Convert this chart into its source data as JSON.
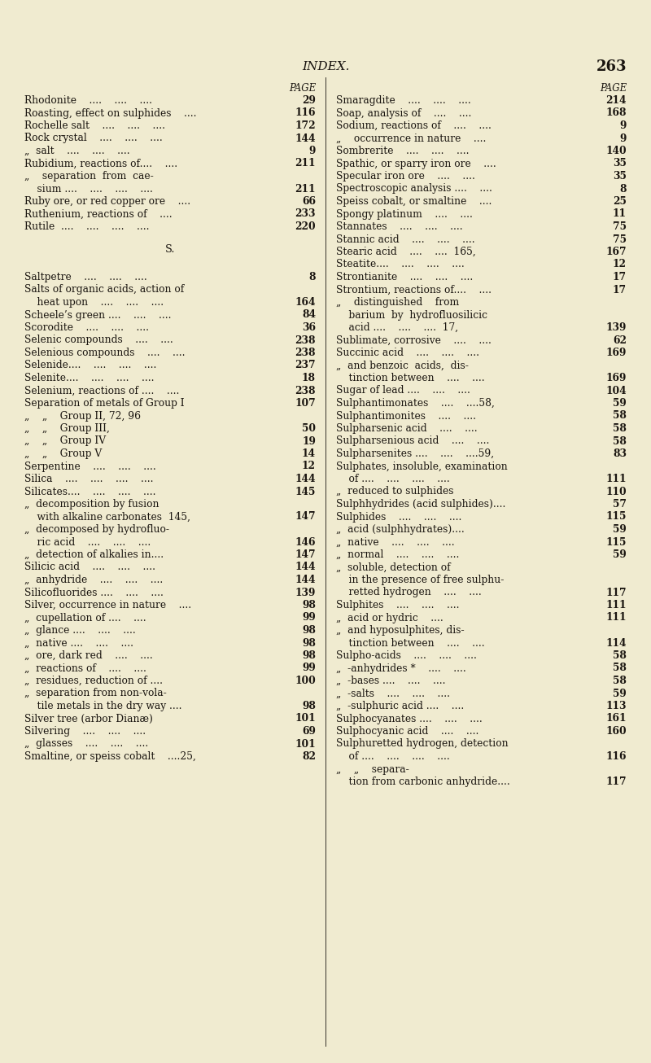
{
  "background_color": "#f0ebd0",
  "text_color": "#1a1510",
  "page_title": "INDEX.",
  "page_number": "263",
  "left_column": [
    {
      "text": "PAGE",
      "page": "",
      "kind": "header"
    },
    {
      "text": "Rhodonite    ....    ....    ....",
      "page": "29",
      "kind": "entry"
    },
    {
      "text": "Roasting, effect on sulphides    ....",
      "page": "116",
      "kind": "entry"
    },
    {
      "text": "Rochelle salt    ....    ....    ....",
      "page": "172",
      "kind": "entry"
    },
    {
      "text": "Rock crystal    ....    ....    ....",
      "page": "144",
      "kind": "entry"
    },
    {
      "text": "„  salt    ....    ....    ....",
      "page": "9",
      "kind": "entry"
    },
    {
      "text": "Rubidium, reactions of....    ....",
      "page": "211",
      "kind": "entry"
    },
    {
      "text": "„    separation  from  cae-",
      "page": "",
      "kind": "entry"
    },
    {
      "text": "    sium ....    ....    ....    ....",
      "page": "211",
      "kind": "entry"
    },
    {
      "text": "Ruby ore, or red copper ore    ....",
      "page": "66",
      "kind": "entry"
    },
    {
      "text": "Ruthenium, reactions of    ....",
      "page": "233",
      "kind": "entry"
    },
    {
      "text": "Rutile  ....    ....    ....    ....",
      "page": "220",
      "kind": "entry"
    },
    {
      "text": "",
      "page": "",
      "kind": "spacer"
    },
    {
      "text": "S.",
      "page": "",
      "kind": "section"
    },
    {
      "text": "",
      "page": "",
      "kind": "spacer"
    },
    {
      "text": "Saltpetre    ....    ....    ....",
      "page": "8",
      "kind": "entry"
    },
    {
      "text": "Salts of organic acids, action of",
      "page": "",
      "kind": "entry"
    },
    {
      "text": "    heat upon    ....    ....    ....",
      "page": "164",
      "kind": "entry"
    },
    {
      "text": "Scheele’s green ....    ....    ....",
      "page": "84",
      "kind": "entry"
    },
    {
      "text": "Scorodite    ....    ....    ....",
      "page": "36",
      "kind": "entry"
    },
    {
      "text": "Selenic compounds    ....    ....",
      "page": "238",
      "kind": "entry"
    },
    {
      "text": "Selenious compounds    ....    ....",
      "page": "238",
      "kind": "entry"
    },
    {
      "text": "Selenide....    ....    ....    ....",
      "page": "237",
      "kind": "entry"
    },
    {
      "text": "Selenite....    ....    ....    ....",
      "page": "18",
      "kind": "entry"
    },
    {
      "text": "Selenium, reactions of ....    ....",
      "page": "238",
      "kind": "entry"
    },
    {
      "text": "Separation of metals of Group I",
      "page": "107",
      "kind": "entry"
    },
    {
      "text": "„    „    Group II, 72, 96",
      "page": "",
      "kind": "entry"
    },
    {
      "text": "„    „    Group III,",
      "page": "50",
      "kind": "entry"
    },
    {
      "text": "„    „    Group IV",
      "page": "19",
      "kind": "entry"
    },
    {
      "text": "„    „    Group V",
      "page": "14",
      "kind": "entry"
    },
    {
      "text": "Serpentine    ....    ....    ....",
      "page": "12",
      "kind": "entry"
    },
    {
      "text": "Silica    ....    ....    ....    ....",
      "page": "144",
      "kind": "entry"
    },
    {
      "text": "Silicates....    ....    ....    ....",
      "page": "145",
      "kind": "entry"
    },
    {
      "text": "„  decomposition by fusion",
      "page": "",
      "kind": "entry"
    },
    {
      "text": "    with alkaline carbonates  145,",
      "page": "147",
      "kind": "entry"
    },
    {
      "text": "„  decomposed by hydrofluo-",
      "page": "",
      "kind": "entry"
    },
    {
      "text": "    ric acid    ....    ....    ....",
      "page": "146",
      "kind": "entry"
    },
    {
      "text": "„  detection of alkalies in....",
      "page": "147",
      "kind": "entry"
    },
    {
      "text": "Silicic acid    ....    ....    ....",
      "page": "144",
      "kind": "entry"
    },
    {
      "text": "„  anhydride    ....    ....    ....",
      "page": "144",
      "kind": "entry"
    },
    {
      "text": "Silicofluorides ....    ....    ....",
      "page": "139",
      "kind": "entry"
    },
    {
      "text": "Silver, occurrence in nature    ....",
      "page": "98",
      "kind": "entry"
    },
    {
      "text": "„  cupellation of ....    ....",
      "page": "99",
      "kind": "entry"
    },
    {
      "text": "„  glance ....    ....    ....",
      "page": "98",
      "kind": "entry"
    },
    {
      "text": "„  native ....    ....    ....",
      "page": "98",
      "kind": "entry"
    },
    {
      "text": "„  ore, dark red    ....    ....",
      "page": "98",
      "kind": "entry"
    },
    {
      "text": "„  reactions of    ....    ....",
      "page": "99",
      "kind": "entry"
    },
    {
      "text": "„  residues, reduction of ....",
      "page": "100",
      "kind": "entry"
    },
    {
      "text": "„  separation from non-vola-",
      "page": "",
      "kind": "entry"
    },
    {
      "text": "    tile metals in the dry way ....",
      "page": "98",
      "kind": "entry"
    },
    {
      "text": "Silver tree (arbor Dianæ)",
      "page": "101",
      "kind": "entry"
    },
    {
      "text": "Silvering    ....    ....    ....",
      "page": "69",
      "kind": "entry"
    },
    {
      "text": "„  glasses    ....    ....    ....",
      "page": "101",
      "kind": "entry"
    },
    {
      "text": "Smaltine, or speiss cobalt    ....25,",
      "page": "82",
      "kind": "entry"
    }
  ],
  "right_column": [
    {
      "text": "PAGE",
      "page": "",
      "kind": "header"
    },
    {
      "text": "Smaragdite    ....    ....    ....",
      "page": "214",
      "kind": "entry"
    },
    {
      "text": "Soap, analysis of    ....    ....",
      "page": "168",
      "kind": "entry"
    },
    {
      "text": "Sodium, reactions of    ....    ....",
      "page": "9",
      "kind": "entry"
    },
    {
      "text": "„    occurrence in nature    ....",
      "page": "9",
      "kind": "entry"
    },
    {
      "text": "Sombrerite    ....    ....    ....",
      "page": "140",
      "kind": "entry"
    },
    {
      "text": "Spathic, or sparry iron ore    ....",
      "page": "35",
      "kind": "entry"
    },
    {
      "text": "Specular iron ore    ....    ....",
      "page": "35",
      "kind": "entry"
    },
    {
      "text": "Spectroscopic analysis ....    ....",
      "page": "8",
      "kind": "entry"
    },
    {
      "text": "Speiss cobalt, or smaltine    ....",
      "page": "25",
      "kind": "entry"
    },
    {
      "text": "Spongy platinum    ....    ....",
      "page": "11",
      "kind": "entry"
    },
    {
      "text": "Stannates    ....    ....    ....",
      "page": "75",
      "kind": "entry"
    },
    {
      "text": "Stannic acid    ....    ....    ....",
      "page": "75",
      "kind": "entry"
    },
    {
      "text": "Stearic acid    ....    ....  165,",
      "page": "167",
      "kind": "entry"
    },
    {
      "text": "Steatite....    ....    ....    ....",
      "page": "12",
      "kind": "entry"
    },
    {
      "text": "Strontianite    ....    ....    ....",
      "page": "17",
      "kind": "entry"
    },
    {
      "text": "Strontium, reactions of....    ....",
      "page": "17",
      "kind": "entry"
    },
    {
      "text": "„    distinguished    from",
      "page": "",
      "kind": "entry"
    },
    {
      "text": "    barium  by  hydrofluosilicic",
      "page": "",
      "kind": "entry"
    },
    {
      "text": "    acid ....    ....    ....  17,",
      "page": "139",
      "kind": "entry"
    },
    {
      "text": "Sublimate, corrosive    ....    ....",
      "page": "62",
      "kind": "entry"
    },
    {
      "text": "Succinic acid    ....    ....    ....",
      "page": "169",
      "kind": "entry"
    },
    {
      "text": "„  and benzoic  acids,  dis-",
      "page": "",
      "kind": "entry"
    },
    {
      "text": "    tinction between    ....    ....",
      "page": "169",
      "kind": "entry"
    },
    {
      "text": "Sugar of lead ....    ....    ....",
      "page": "104",
      "kind": "entry"
    },
    {
      "text": "Sulphantimonates    ....    ....58,",
      "page": "59",
      "kind": "entry"
    },
    {
      "text": "Sulphantimonites    ....    ....",
      "page": "58",
      "kind": "entry"
    },
    {
      "text": "Sulpharsenic acid    ....    ....",
      "page": "58",
      "kind": "entry"
    },
    {
      "text": "Sulpharsenious acid    ....    ....",
      "page": "58",
      "kind": "entry"
    },
    {
      "text": "Sulpharsenites ....    ....    ....59,",
      "page": "83",
      "kind": "entry"
    },
    {
      "text": "Sulphates, insoluble, examination",
      "page": "",
      "kind": "entry"
    },
    {
      "text": "    of ....    ....    ....    ....",
      "page": "111",
      "kind": "entry"
    },
    {
      "text": "„  reduced to sulphides",
      "page": "110",
      "kind": "entry"
    },
    {
      "text": "Sulphhydrides (acid sulphides)....",
      "page": "57",
      "kind": "entry"
    },
    {
      "text": "Sulphides    ....    ....    ....",
      "page": "115",
      "kind": "entry"
    },
    {
      "text": "„  acid (sulphhydrates)....",
      "page": "59",
      "kind": "entry"
    },
    {
      "text": "„  native    ....    ....    ....",
      "page": "115",
      "kind": "entry"
    },
    {
      "text": "„  normal    ....    ....    ....",
      "page": "59",
      "kind": "entry"
    },
    {
      "text": "„  soluble, detection of",
      "page": "",
      "kind": "entry"
    },
    {
      "text": "    in the presence of free sulphu-",
      "page": "",
      "kind": "entry"
    },
    {
      "text": "    retted hydrogen    ....    ....",
      "page": "117",
      "kind": "entry"
    },
    {
      "text": "Sulphites    ....    ....    ....",
      "page": "111",
      "kind": "entry"
    },
    {
      "text": "„  acid or hydric    ....",
      "page": "111",
      "kind": "entry"
    },
    {
      "text": "„  and hyposulphites, dis-",
      "page": "",
      "kind": "entry"
    },
    {
      "text": "    tinction between    ....    ....",
      "page": "114",
      "kind": "entry"
    },
    {
      "text": "Sulpho-acids    ....    ....    ....",
      "page": "58",
      "kind": "entry"
    },
    {
      "text": "„  -anhydrides *    ....    ....",
      "page": "58",
      "kind": "entry"
    },
    {
      "text": "„  -bases ....    ....    ....",
      "page": "58",
      "kind": "entry"
    },
    {
      "text": "„  -salts    ....    ....    ....",
      "page": "59",
      "kind": "entry"
    },
    {
      "text": "„  -sulphuric acid ....    ....",
      "page": "113",
      "kind": "entry"
    },
    {
      "text": "Sulphocyanates ....    ....    ....",
      "page": "161",
      "kind": "entry"
    },
    {
      "text": "Sulphocyanic acid    ....    ....",
      "page": "160",
      "kind": "entry"
    },
    {
      "text": "Sulphuretted hydrogen, detection",
      "page": "",
      "kind": "entry"
    },
    {
      "text": "    of ....    ....    ....    ....",
      "page": "116",
      "kind": "entry"
    },
    {
      "text": "„    „    separa-",
      "page": "",
      "kind": "entry"
    },
    {
      "text": "    tion from carbonic anhydride....",
      "page": "117",
      "kind": "entry"
    }
  ]
}
